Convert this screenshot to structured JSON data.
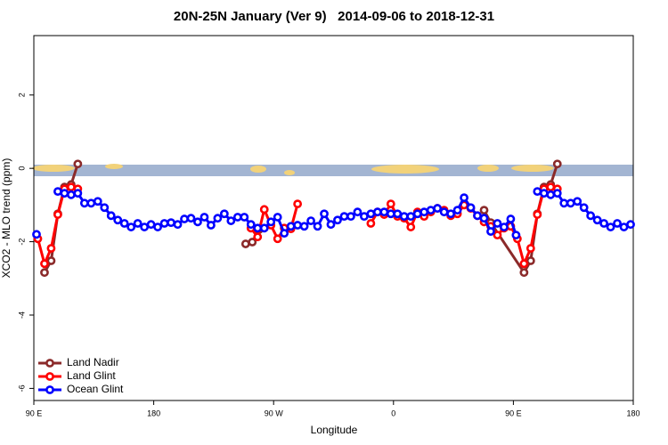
{
  "chart_data": {
    "type": "line",
    "title": "20N-25N January (Ver 9)   2014-09-06 to 2018-12-31",
    "xlabel": "Longitude",
    "ylabel": "XCO2 - MLO trend (ppm)",
    "xlim": [
      90,
      540
    ],
    "ylim": [
      -6.33,
      3.62
    ],
    "xticks": [
      {
        "value": 90,
        "label": "90 E"
      },
      180,
      {
        "value": 270,
        "label": "90 W"
      },
      {
        "value": 360,
        "label": "0"
      },
      {
        "value": 450,
        "label": "90 E"
      },
      {
        "value": 540,
        "label": "180"
      }
    ],
    "yticks": [
      -6,
      -4,
      -2,
      0,
      2
    ],
    "legend": "bottom-left",
    "series": [
      {
        "name": "Land Nadir",
        "color": "#8b2a2a",
        "x": [
          98,
          103,
          108,
          113,
          118,
          123,
          128,
          249,
          254,
          259,
          423,
          428,
          433,
          458,
          463,
          468,
          473,
          478,
          483
        ],
        "values": [
          -2.84,
          -2.52,
          -1.24,
          -0.51,
          -0.44,
          0.12,
          null,
          -2.06,
          -2.01,
          -1.67,
          null,
          -1.14,
          -1.48,
          -2.84,
          -2.52,
          -1.24,
          -0.51,
          -0.44,
          0.12
        ]
      },
      {
        "name": "Land Glint",
        "color": "#ff0000",
        "x": [
          93,
          98,
          103,
          108,
          113,
          118,
          123,
          128,
          253,
          258,
          263,
          268,
          273,
          278,
          283,
          288,
          293,
          343,
          348,
          353,
          358,
          363,
          368,
          373,
          378,
          383,
          388,
          393,
          398,
          403,
          408,
          413,
          418,
          423,
          428,
          433,
          438,
          443,
          448,
          453,
          458,
          463,
          468,
          473,
          478,
          483
        ],
        "values": [
          -1.92,
          -2.6,
          -2.18,
          -1.26,
          -0.56,
          -0.51,
          -0.56,
          null,
          -1.63,
          -1.87,
          -1.12,
          -1.55,
          -1.92,
          -1.63,
          -1.65,
          -0.97,
          null,
          -1.5,
          -1.19,
          -1.26,
          -0.97,
          -1.31,
          -1.36,
          -1.6,
          -1.19,
          -1.31,
          -1.19,
          -1.09,
          -1.14,
          -1.29,
          -1.24,
          -1.0,
          -1.09,
          -1.29,
          -1.46,
          -1.58,
          -1.82,
          -1.63,
          -1.58,
          -1.92,
          -2.6,
          -2.18,
          -1.26,
          -0.56,
          -0.51,
          -0.56
        ]
      },
      {
        "name": "Ocean Glint",
        "color": "#0000ff",
        "x": [
          92,
          100,
          108,
          113,
          118,
          123,
          128,
          133,
          138,
          143,
          148,
          153,
          158,
          163,
          168,
          173,
          178,
          183,
          188,
          193,
          198,
          203,
          208,
          213,
          218,
          223,
          228,
          233,
          238,
          243,
          248,
          253,
          258,
          263,
          268,
          273,
          278,
          283,
          288,
          293,
          298,
          303,
          308,
          313,
          318,
          323,
          328,
          333,
          338,
          343,
          348,
          353,
          358,
          363,
          368,
          373,
          378,
          383,
          388,
          393,
          398,
          403,
          408,
          413,
          418,
          423,
          428,
          433,
          438,
          443,
          448,
          452,
          460,
          468,
          473,
          478,
          483,
          488,
          493,
          498,
          503,
          508,
          513,
          518,
          523,
          528,
          533,
          538
        ],
        "values": [
          -1.8,
          null,
          -0.63,
          -0.68,
          -0.72,
          -0.68,
          -0.95,
          -0.95,
          -0.9,
          -1.07,
          -1.29,
          -1.41,
          -1.5,
          -1.6,
          -1.5,
          -1.6,
          -1.53,
          -1.6,
          -1.5,
          -1.48,
          -1.53,
          -1.38,
          -1.36,
          -1.46,
          -1.33,
          -1.55,
          -1.36,
          -1.24,
          -1.43,
          -1.33,
          -1.33,
          -1.53,
          -1.63,
          -1.63,
          -1.46,
          -1.33,
          -1.77,
          -1.58,
          -1.55,
          -1.58,
          -1.43,
          -1.58,
          -1.24,
          -1.53,
          -1.41,
          -1.31,
          -1.31,
          -1.19,
          -1.31,
          -1.24,
          -1.19,
          -1.19,
          -1.24,
          -1.24,
          -1.31,
          -1.31,
          -1.24,
          -1.19,
          -1.14,
          -1.09,
          -1.19,
          -1.24,
          -1.14,
          -0.8,
          -1.07,
          -1.29,
          -1.36,
          -1.72,
          -1.5,
          -1.6,
          -1.38,
          -1.82,
          null,
          -0.63,
          -0.68,
          -0.72,
          -0.68,
          -0.95,
          -0.95,
          -0.9,
          -1.07,
          -1.29,
          -1.41,
          -1.5,
          -1.6,
          -1.5,
          -1.6,
          -1.53
        ]
      }
    ]
  }
}
